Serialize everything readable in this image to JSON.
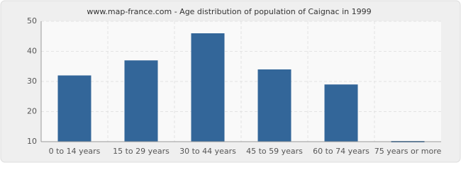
{
  "chart_data": {
    "type": "bar",
    "title": "www.map-france.com - Age distribution of population of Caignac in 1999",
    "categories": [
      "0 to 14 years",
      "15 to 29 years",
      "30 to 44 years",
      "45 to 59 years",
      "60 to 74 years",
      "75 years or more"
    ],
    "values": [
      32,
      37,
      46,
      34,
      29,
      10
    ],
    "color": "#336699",
    "ylim": [
      10,
      50
    ],
    "yticks": [
      10,
      20,
      30,
      40,
      50
    ],
    "grid": true
  }
}
